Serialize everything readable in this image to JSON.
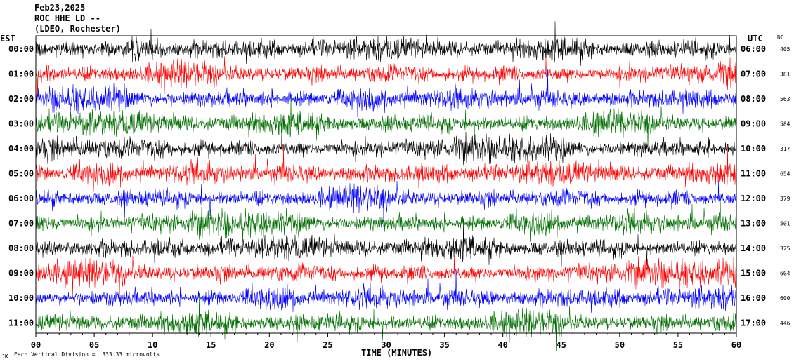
{
  "header": {
    "date": "Feb23,2025",
    "station": "ROC HHE LD --",
    "network": "(LDEO, Rochester)"
  },
  "left_tz": "EST",
  "right_tz": "UTC",
  "dc_header": "DC",
  "footer": {
    "corner": "JK",
    "scale_note": "Each Vertical Division =  333.33 microvolts"
  },
  "colors": {
    "trace_cycle": [
      "#000000",
      "#ff0000",
      "#0000ff",
      "#007000"
    ],
    "frame": "#000000",
    "background": "#ffffff"
  },
  "chart_data": {
    "type": "line",
    "title": "",
    "xlabel": "TIME (MINUTES)",
    "xlim": [
      0,
      60
    ],
    "x_ticks": [
      "00",
      "05",
      "10",
      "15",
      "20",
      "25",
      "30",
      "35",
      "40",
      "45",
      "50",
      "55",
      "60"
    ],
    "rows": [
      {
        "left": "00:00",
        "right": "06:00",
        "dc": "405",
        "color": "#000000"
      },
      {
        "left": "01:00",
        "right": "07:00",
        "dc": "381",
        "color": "#ff0000"
      },
      {
        "left": "02:00",
        "right": "08:00",
        "dc": "563",
        "color": "#0000ff"
      },
      {
        "left": "03:00",
        "right": "09:00",
        "dc": "584",
        "color": "#007000"
      },
      {
        "left": "04:00",
        "right": "10:00",
        "dc": "317",
        "color": "#000000"
      },
      {
        "left": "05:00",
        "right": "11:00",
        "dc": "654",
        "color": "#ff0000"
      },
      {
        "left": "06:00",
        "right": "12:00",
        "dc": "379",
        "color": "#0000ff"
      },
      {
        "left": "07:00",
        "right": "13:00",
        "dc": "501",
        "color": "#007000"
      },
      {
        "left": "08:00",
        "right": "14:00",
        "dc": "325",
        "color": "#000000"
      },
      {
        "left": "09:00",
        "right": "15:00",
        "dc": "604",
        "color": "#ff0000"
      },
      {
        "left": "10:00",
        "right": "16:00",
        "dc": "600",
        "color": "#0000ff"
      },
      {
        "left": "11:00",
        "right": "17:00",
        "dc": "446",
        "color": "#007000"
      }
    ]
  }
}
